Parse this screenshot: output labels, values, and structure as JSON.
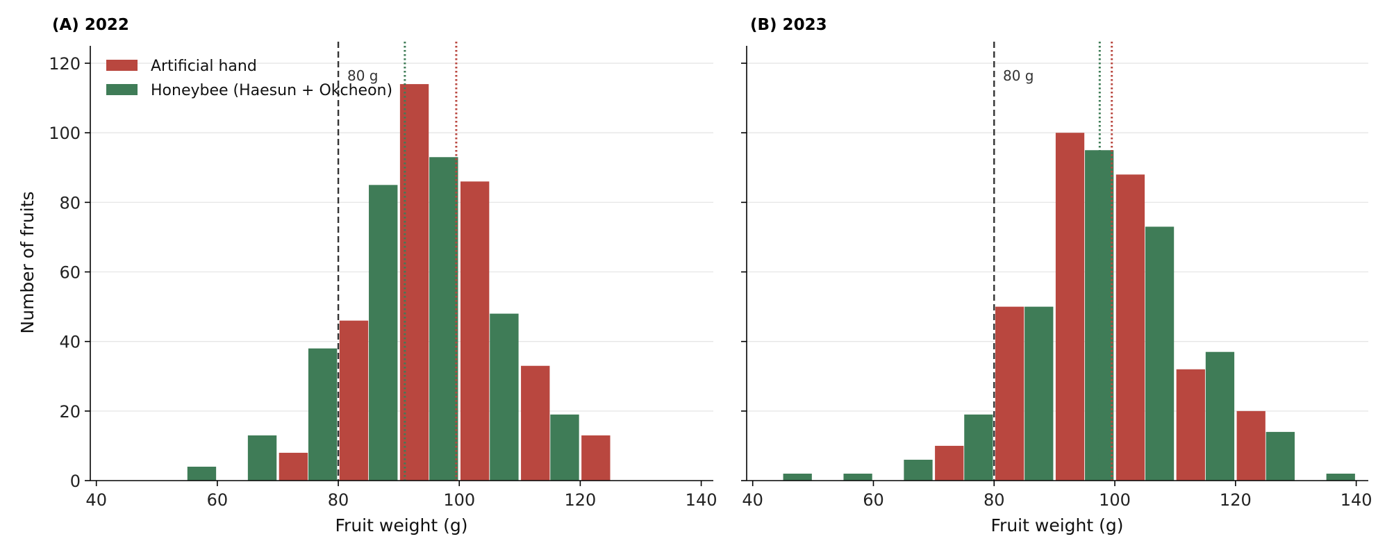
{
  "figure": {
    "ylabel": "Number of fruits",
    "colors": {
      "artificial": "#b9473f",
      "honeybee": "#3f7c57",
      "threshold_line": "#333333",
      "grid": "#e6e6e6"
    }
  },
  "chart_data": [
    {
      "type": "bar",
      "title": "(A) 2022",
      "xlabel": "Fruit weight (g)",
      "ylabel": "Number of fruits",
      "xlim": [
        39,
        142
      ],
      "ylim": [
        0,
        125
      ],
      "xticks": [
        40,
        60,
        80,
        100,
        120,
        140
      ],
      "yticks": [
        0,
        20,
        40,
        60,
        80,
        100,
        120
      ],
      "grid": "horizontal",
      "legend_position": "top-left",
      "bin_width": 10,
      "bins": [
        45,
        55,
        65,
        75,
        85,
        95,
        105,
        115,
        125,
        135
      ],
      "series": [
        {
          "name": "Artificial hand",
          "color": "#b9473f",
          "values": [
            0,
            0,
            0,
            8,
            46,
            114,
            86,
            33,
            13,
            0
          ]
        },
        {
          "name": "Honeybee (Haesun + Okcheon)",
          "color": "#3f7c57",
          "values": [
            0,
            4,
            13,
            38,
            85,
            93,
            48,
            19,
            0,
            0
          ]
        }
      ],
      "reference_lines": [
        {
          "x": 80,
          "label": "80 g",
          "style": "dashed",
          "color": "#333333"
        },
        {
          "x": 91,
          "style": "dotted",
          "color": "#3f7c57"
        },
        {
          "x": 99.5,
          "style": "dotted",
          "color": "#b9473f"
        }
      ]
    },
    {
      "type": "bar",
      "title": "(B) 2023",
      "xlabel": "Fruit weight (g)",
      "xlim": [
        39,
        142
      ],
      "ylim": [
        0,
        125
      ],
      "xticks": [
        40,
        60,
        80,
        100,
        120,
        140
      ],
      "yticks": [
        0,
        20,
        40,
        60,
        80,
        100,
        120
      ],
      "grid": "horizontal",
      "bin_width": 10,
      "bins": [
        45,
        55,
        65,
        75,
        85,
        95,
        105,
        115,
        125,
        135
      ],
      "series": [
        {
          "name": "Artificial hand",
          "color": "#b9473f",
          "values": [
            0,
            0,
            0,
            10,
            50,
            100,
            88,
            32,
            20,
            0
          ]
        },
        {
          "name": "Honeybee (Haesun + Okcheon)",
          "color": "#3f7c57",
          "values": [
            2,
            2,
            6,
            19,
            50,
            95,
            73,
            37,
            14,
            2
          ]
        }
      ],
      "reference_lines": [
        {
          "x": 80,
          "label": "80 g",
          "style": "dashed",
          "color": "#333333"
        },
        {
          "x": 97.5,
          "style": "dotted",
          "color": "#3f7c57"
        },
        {
          "x": 99.5,
          "style": "dotted",
          "color": "#b9473f"
        }
      ]
    }
  ]
}
